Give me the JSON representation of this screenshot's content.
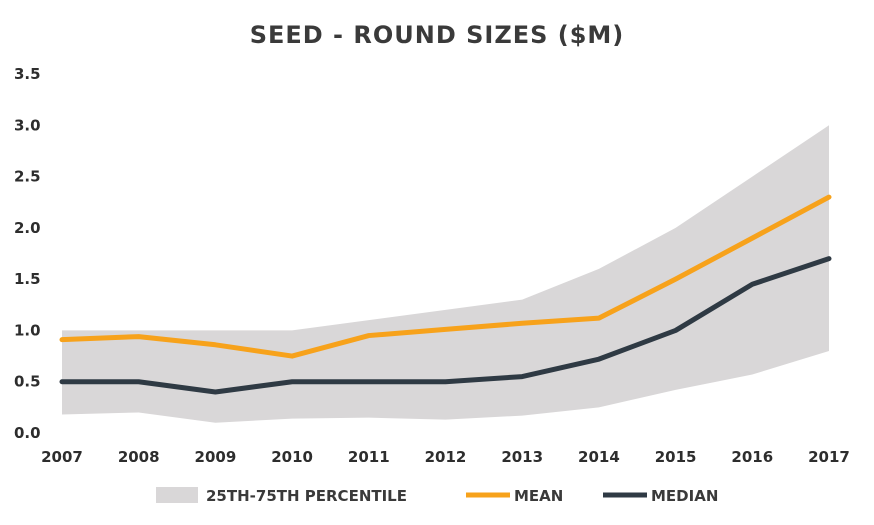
{
  "chart_data": {
    "type": "line",
    "title": "SEED - ROUND SIZES ($M)",
    "xlabel": "",
    "ylabel": "",
    "x": [
      "2007",
      "2008",
      "2009",
      "2010",
      "2011",
      "2012",
      "2013",
      "2014",
      "2015",
      "2016",
      "2017"
    ],
    "ylim": [
      0,
      3.5
    ],
    "yticks": [
      "0.0",
      "0.5",
      "1.0",
      "1.5",
      "2.0",
      "2.5",
      "3.0",
      "3.5"
    ],
    "band": {
      "name": "25TH-75TH PERCENTILE",
      "lower": [
        0.18,
        0.2,
        0.1,
        0.14,
        0.15,
        0.13,
        0.17,
        0.25,
        0.42,
        0.57,
        0.8
      ],
      "upper": [
        1.0,
        1.0,
        1.0,
        1.0,
        1.1,
        1.2,
        1.3,
        1.6,
        2.0,
        2.5,
        3.0
      ],
      "color": "#d9d7d8"
    },
    "series": [
      {
        "name": "MEAN",
        "color": "#f7a21b",
        "values": [
          0.91,
          0.94,
          0.86,
          0.75,
          0.95,
          1.01,
          1.07,
          1.12,
          1.5,
          1.9,
          2.3
        ]
      },
      {
        "name": "MEDIAN",
        "color": "#2f3a44",
        "values": [
          0.5,
          0.5,
          0.4,
          0.5,
          0.5,
          0.5,
          0.55,
          0.72,
          1.0,
          1.45,
          1.7
        ]
      }
    ],
    "legend": {
      "position": "bottom",
      "items": [
        "25TH-75TH PERCENTILE",
        "MEAN",
        "MEDIAN"
      ]
    }
  }
}
